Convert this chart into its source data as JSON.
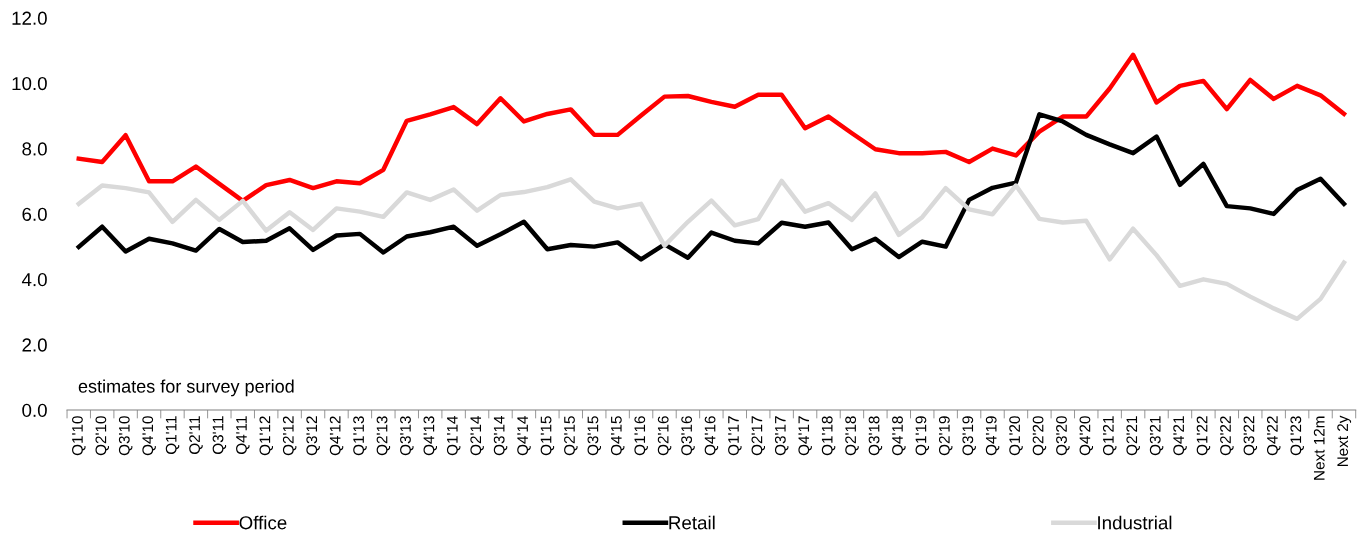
{
  "chart_data": {
    "type": "line",
    "categories": [
      "Q1'10",
      "Q2'10",
      "Q3'10",
      "Q4'10",
      "Q1'11",
      "Q2'11",
      "Q3'11",
      "Q4'11",
      "Q1'12",
      "Q2'12",
      "Q3'12",
      "Q4'12",
      "Q1'13",
      "Q2'13",
      "Q3'13",
      "Q4'13",
      "Q1'14",
      "Q2'14",
      "Q3'14",
      "Q4'14",
      "Q1'15",
      "Q2'15",
      "Q3'15",
      "Q4'15",
      "Q1'16",
      "Q2'16",
      "Q3'16",
      "Q4'16",
      "Q1'17",
      "Q2'17",
      "Q3'17",
      "Q4'17",
      "Q1'18",
      "Q2'18",
      "Q3'18",
      "Q4'18",
      "Q1'19",
      "Q2'19",
      "Q3'19",
      "Q4'19",
      "Q1'20",
      "Q2'20",
      "Q3'20",
      "Q4'20",
      "Q1'21",
      "Q2'21",
      "Q3'21",
      "Q4'21",
      "Q1'22",
      "Q2'22",
      "Q3'22",
      "Q4'22",
      "Q1'23",
      "Next 12m",
      "Next 2y"
    ],
    "series": [
      {
        "name": "Office",
        "color": "#ff0000",
        "values": [
          7.69,
          7.59,
          8.41,
          7.0,
          7.0,
          7.45,
          6.92,
          6.4,
          6.88,
          7.04,
          6.79,
          7.0,
          6.94,
          7.35,
          8.85,
          9.05,
          9.27,
          8.75,
          9.54,
          8.83,
          9.06,
          9.2,
          8.42,
          8.42,
          9.01,
          9.59,
          9.61,
          9.43,
          9.28,
          9.65,
          9.65,
          8.62,
          8.98,
          8.47,
          7.98,
          7.86,
          7.86,
          7.9,
          7.59,
          8.0,
          7.79,
          8.52,
          8.98,
          8.98,
          9.84,
          10.87,
          9.41,
          9.92,
          10.07,
          9.21,
          10.1,
          9.52,
          9.92,
          9.63,
          9.06
        ]
      },
      {
        "name": "Retail",
        "color": "#000000",
        "values": [
          4.99,
          5.61,
          4.85,
          5.24,
          5.1,
          4.88,
          5.54,
          5.14,
          5.18,
          5.56,
          4.9,
          5.34,
          5.39,
          4.82,
          5.31,
          5.44,
          5.61,
          5.03,
          5.38,
          5.76,
          4.92,
          5.05,
          5.0,
          5.13,
          4.61,
          5.07,
          4.66,
          5.43,
          5.18,
          5.1,
          5.73,
          5.61,
          5.74,
          4.92,
          5.24,
          4.68,
          5.15,
          5.0,
          6.43,
          6.8,
          6.96,
          9.05,
          8.83,
          8.42,
          8.13,
          7.86,
          8.37,
          6.89,
          7.53,
          6.24,
          6.17,
          6.0,
          6.73,
          7.08,
          6.31
        ]
      },
      {
        "name": "Industrial",
        "color": "#d9d9d9",
        "values": [
          6.31,
          6.87,
          6.79,
          6.66,
          5.76,
          6.43,
          5.82,
          6.4,
          5.49,
          6.05,
          5.51,
          6.17,
          6.07,
          5.91,
          6.66,
          6.43,
          6.75,
          6.1,
          6.58,
          6.67,
          6.82,
          7.06,
          6.38,
          6.17,
          6.31,
          5.03,
          5.76,
          6.41,
          5.65,
          5.84,
          7.01,
          6.07,
          6.33,
          5.82,
          6.63,
          5.36,
          5.9,
          6.79,
          6.14,
          5.99,
          6.87,
          5.85,
          5.74,
          5.79,
          4.61,
          5.55,
          4.74,
          3.8,
          4.0,
          3.86,
          3.47,
          3.11,
          2.79,
          3.4,
          4.51
        ]
      }
    ],
    "ylim": [
      0,
      12
    ],
    "yticks": [
      {
        "value": 0,
        "label": "0.0"
      },
      {
        "value": 2,
        "label": "2.0"
      },
      {
        "value": 4,
        "label": "4.0"
      },
      {
        "value": 6,
        "label": "6.0"
      },
      {
        "value": 8,
        "label": "8.0"
      },
      {
        "value": 10,
        "label": "10.0"
      },
      {
        "value": 12,
        "label": "12.0"
      }
    ],
    "annotations": [
      "estimates for survey period"
    ],
    "legend": "bottom",
    "grid": false,
    "marker": "none",
    "line_style": "solid"
  }
}
